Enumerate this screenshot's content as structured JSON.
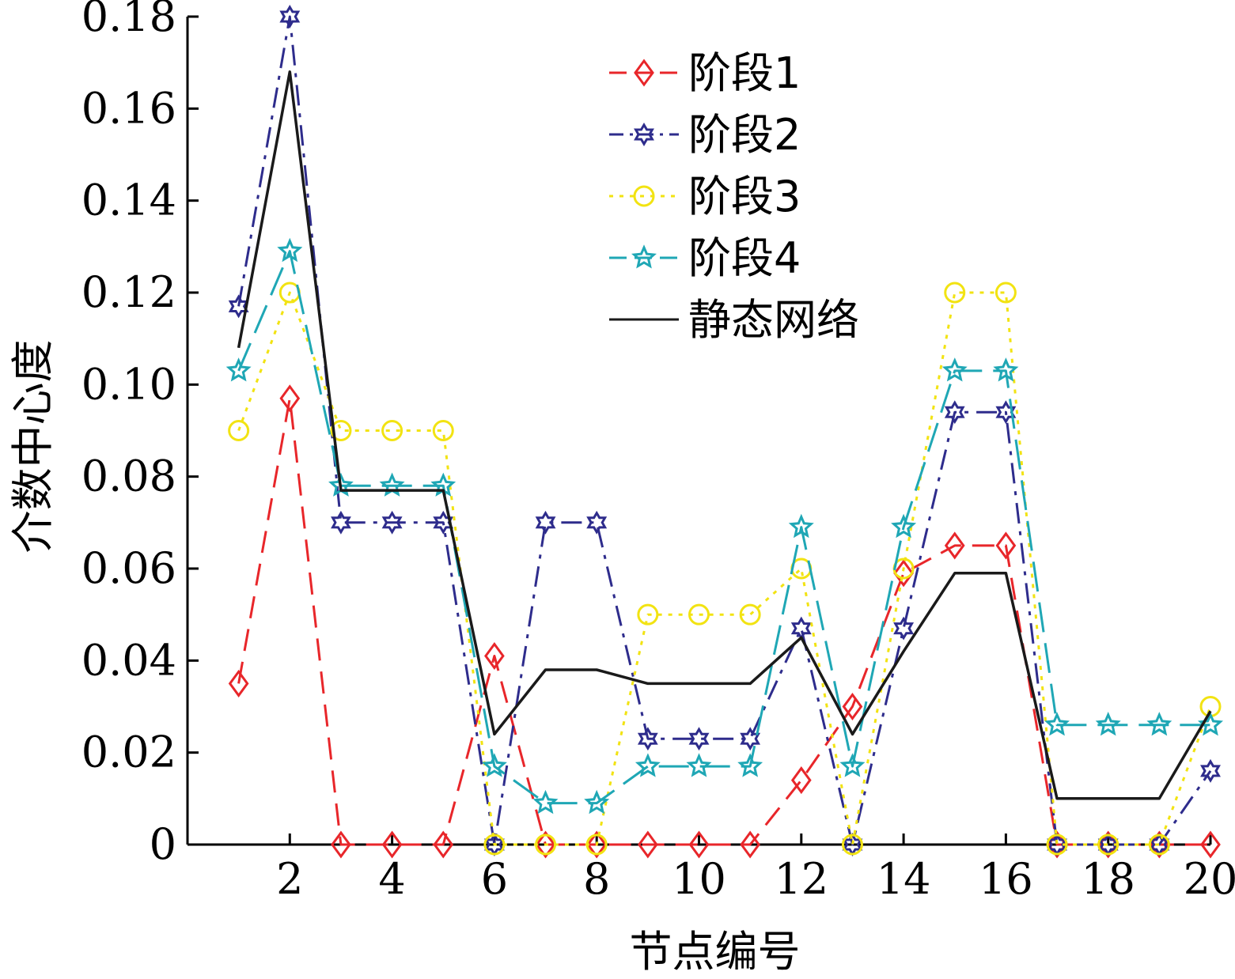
{
  "chart_data": {
    "type": "line",
    "title": "",
    "xlabel": "节点编号",
    "ylabel": "介数中心度",
    "x": [
      1,
      2,
      3,
      4,
      5,
      6,
      7,
      8,
      9,
      10,
      11,
      12,
      13,
      14,
      15,
      16,
      17,
      18,
      19,
      20
    ],
    "xticks": [
      2,
      4,
      6,
      8,
      10,
      12,
      14,
      16,
      18,
      20
    ],
    "xtick_labels": [
      "2",
      "4",
      "6",
      "8",
      "10",
      "12",
      "14",
      "16",
      "18",
      "20"
    ],
    "xlim": [
      0,
      20
    ],
    "yticks": [
      0,
      0.02,
      0.04,
      0.06,
      0.08,
      0.1,
      0.12,
      0.14,
      0.16,
      0.18
    ],
    "ytick_labels": [
      "0",
      "0.02",
      "0.04",
      "0.06",
      "0.08",
      "0.10",
      "0.12",
      "0.14",
      "0.16",
      "0.18"
    ],
    "ylim": [
      0,
      0.18
    ],
    "grid": false,
    "legend_position": "top-right",
    "series": [
      {
        "name": "阶段1",
        "color": "#e8262a",
        "dash": "dashed",
        "marker": "diamond",
        "values": [
          0.035,
          0.097,
          0,
          0,
          0,
          0.041,
          0,
          0,
          0,
          0,
          0,
          0.014,
          0.03,
          0.059,
          0.065,
          0.065,
          0,
          0,
          0,
          0
        ]
      },
      {
        "name": "阶段2",
        "color": "#2e2c8c",
        "dash": "dash-dot",
        "marker": "hexagram",
        "values": [
          0.117,
          0.18,
          0.07,
          0.07,
          0.07,
          0,
          0.07,
          0.07,
          0.023,
          0.023,
          0.023,
          0.047,
          0,
          0.047,
          0.094,
          0.094,
          0,
          0,
          0,
          0.016
        ]
      },
      {
        "name": "阶段3",
        "color": "#f2e312",
        "dash": "dotted",
        "marker": "circle",
        "values": [
          0.09,
          0.12,
          0.09,
          0.09,
          0.09,
          0,
          0,
          0,
          0.05,
          0.05,
          0.05,
          0.06,
          0,
          0.06,
          0.12,
          0.12,
          0,
          0,
          0,
          0.03
        ]
      },
      {
        "name": "阶段4",
        "color": "#1fa7b5",
        "dash": "long-dash",
        "marker": "star",
        "values": [
          0.103,
          0.129,
          0.078,
          0.078,
          0.078,
          0.017,
          0.009,
          0.009,
          0.017,
          0.017,
          0.017,
          0.069,
          0.017,
          0.069,
          0.103,
          0.103,
          0.026,
          0.026,
          0.026,
          0.026
        ]
      },
      {
        "name": "静态网络",
        "color": "#1a1a1a",
        "dash": "solid",
        "marker": "none",
        "values": [
          0.108,
          0.168,
          0.077,
          0.077,
          0.077,
          0.024,
          0.038,
          0.038,
          0.035,
          0.035,
          0.035,
          0.045,
          0.024,
          0.042,
          0.059,
          0.059,
          0.01,
          0.01,
          0.01,
          0.029
        ]
      }
    ]
  }
}
